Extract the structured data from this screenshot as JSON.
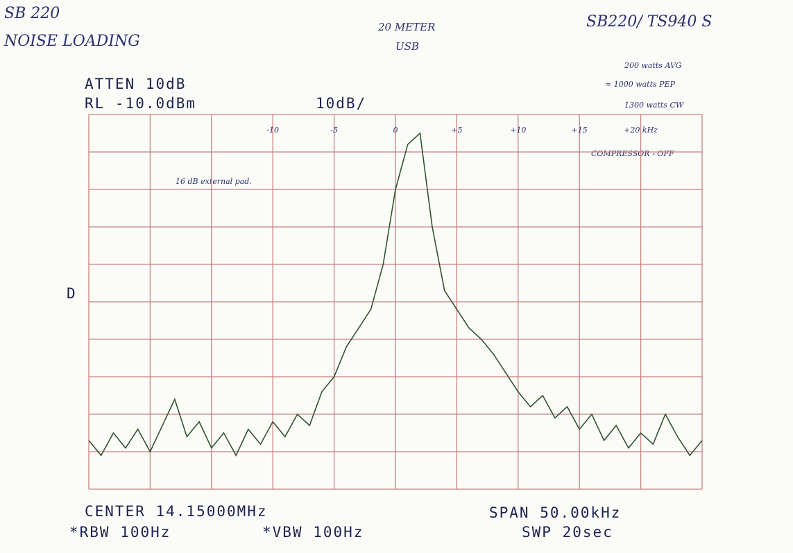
{
  "chart_data": {
    "type": "line",
    "annotations": [
      "SB 220",
      "NOISE LOADING",
      "20 METER",
      "USB",
      "SB220/ TS940 S",
      "200 watts AVG",
      "≈ 1000 watts PEP",
      "1300 watts CW",
      "COMPRESSOR - OFF",
      "16 dB external pad."
    ],
    "instrument": {
      "atten": "ATTEN 10dB",
      "ref_level": "RL -10.0dBm",
      "scale": "10dB/",
      "marker": "D",
      "center": "CENTER 14.15000MHz",
      "span": "SPAN 50.00kHz",
      "rbw": "*RBW 100Hz",
      "vbw": "*VBW 100Hz",
      "sweep": "SWP 20sec"
    },
    "xlim": [
      -25,
      25
    ],
    "ylim": [
      -110,
      -10
    ],
    "xticks": [
      -10,
      -5,
      0,
      {
        "value": 5,
        "label": "+5"
      },
      {
        "value": 10,
        "label": "+10"
      },
      {
        "value": 15,
        "label": "+15"
      },
      {
        "value": 20,
        "label": "+20 kHz"
      }
    ],
    "yticks": [
      -10,
      -20,
      -30,
      -40,
      -50,
      -60,
      -70,
      -80,
      -90,
      -100,
      -110
    ],
    "grid": true,
    "color": "#2f5530",
    "x": [
      -25,
      -24,
      -23,
      -22,
      -21,
      -20,
      -19,
      -18,
      -17,
      -16,
      -15,
      -14,
      -13,
      -12,
      -11,
      -10,
      -9,
      -8,
      -7,
      -6,
      -5,
      -4,
      -3,
      -2,
      -1,
      0,
      1,
      2,
      3,
      4,
      5,
      6,
      7,
      8,
      9,
      10,
      11,
      12,
      13,
      14,
      15,
      16,
      17,
      18,
      19,
      20,
      21,
      22,
      23,
      24,
      25
    ],
    "values": [
      -97,
      -101,
      -95,
      -99,
      -94,
      -100,
      -93,
      -86,
      -96,
      -92,
      -99,
      -95,
      -101,
      -94,
      -98,
      -92,
      -96,
      -90,
      -93,
      -84,
      -80,
      -72,
      -67,
      -62,
      -50,
      -30,
      -18,
      -15,
      -40,
      -57,
      -62,
      -67,
      -70,
      -74,
      -79,
      -84,
      -88,
      -85,
      -91,
      -88,
      -94,
      -90,
      -97,
      -93,
      -99,
      -95,
      -98,
      -90,
      -96,
      -101,
      -97
    ]
  }
}
